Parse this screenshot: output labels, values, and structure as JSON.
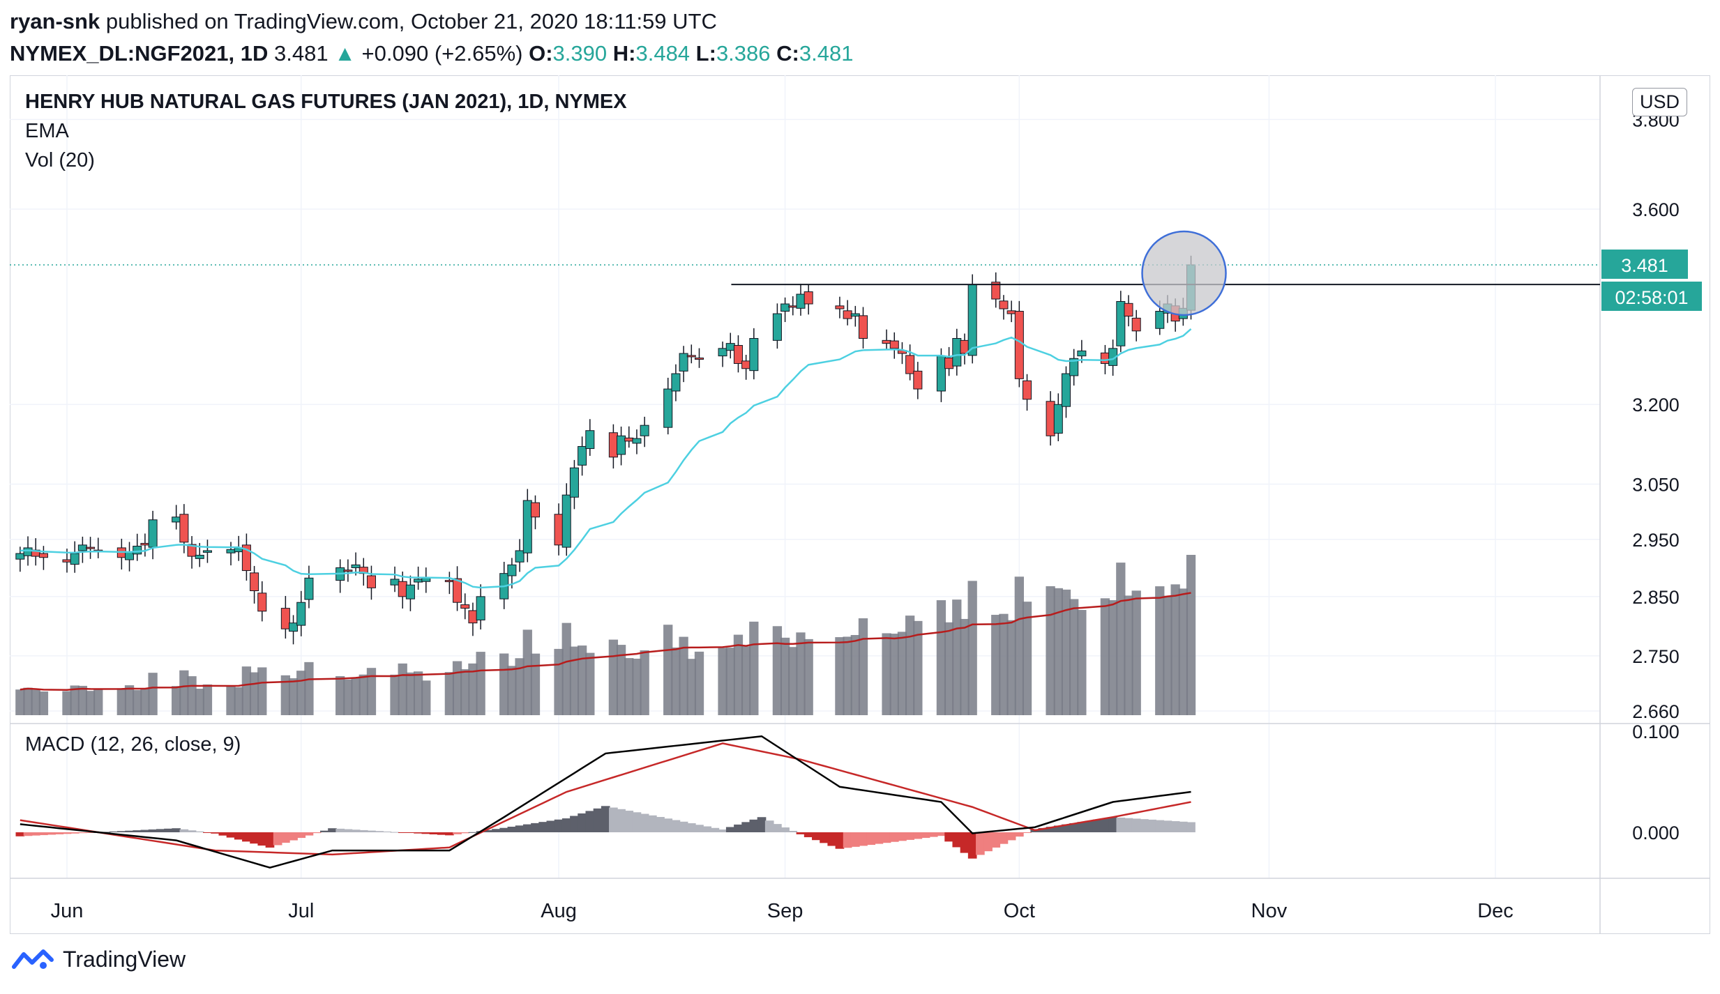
{
  "header": {
    "author": "ryan-snk",
    "published_text": "published on TradingView.com, October 21, 2020 18:11:59 UTC",
    "symbol": "NYMEX_DL:NGF2021, 1D",
    "last": "3.481",
    "change_arrow": "▲",
    "change": "+0.090 (+2.65%)",
    "o_label": "O:",
    "o_value": "3.390",
    "h_label": "H:",
    "h_value": "3.484",
    "l_label": "L:",
    "l_value": "3.386",
    "c_label": "C:",
    "c_value": "3.481"
  },
  "legend": {
    "title": "HENRY HUB NATURAL GAS FUTURES (JAN 2021), 1D, NYMEX",
    "ema": "EMA",
    "vol": "Vol (20)",
    "macd": "MACD (12, 26, close, 9)"
  },
  "currency_button": "USD",
  "price_label": "3.481",
  "countdown_label": "02:58:01",
  "footer": {
    "brand": "TradingView",
    "logo_icon": "tradingview-logo-icon"
  },
  "colors": {
    "up": "#26a69a",
    "down": "#ef5350",
    "ema": "#4dd0e1",
    "volume": "#787b86",
    "volume_ma": "#b71c1c",
    "macd": "#000000",
    "signal": "#c62828",
    "hist_pos_dark": "#5d606b",
    "hist_pos_light": "#b2b5be",
    "hist_neg_dark": "#c62828",
    "hist_neg_light": "#ef7f7f",
    "highlight_fill": "#c8c8cc",
    "highlight_stroke": "#3f6fd8"
  },
  "chart_data": {
    "type": "candlestick",
    "title": "HENRY HUB NATURAL GAS FUTURES (JAN 2021), 1D, NYMEX",
    "currency": "USD",
    "price_axis": {
      "scale": "log",
      "ticks": [
        3.8,
        3.6,
        3.2,
        3.05,
        2.95,
        2.85,
        2.75,
        2.66
      ],
      "tick_labels": [
        "3.800",
        "3.600",
        "3.200",
        "3.050",
        "2.950",
        "2.850",
        "2.750",
        "2.660"
      ]
    },
    "x_axis": {
      "months": [
        {
          "label": "Jun",
          "date": "2020-06-01"
        },
        {
          "label": "Jul",
          "date": "2020-07-01"
        },
        {
          "label": "Aug",
          "date": "2020-08-03"
        },
        {
          "label": "Sep",
          "date": "2020-09-01"
        },
        {
          "label": "Oct",
          "date": "2020-10-01"
        },
        {
          "label": "Nov",
          "date": "2020-11-02"
        },
        {
          "label": "Dec",
          "date": "2020-12-01"
        }
      ],
      "first_date": "2020-05-26",
      "last_date": "2020-10-21"
    },
    "resistance_level": 3.44,
    "last_price": 3.481,
    "highlight_date": "2020-10-21",
    "closes": [
      2.925,
      2.935,
      2.92,
      2.918,
      2.91,
      2.925,
      2.94,
      2.935,
      2.93,
      2.918,
      2.928,
      2.938,
      2.94,
      2.985,
      2.99,
      2.945,
      2.92,
      2.922,
      2.93,
      2.932,
      2.935,
      2.895,
      2.86,
      2.825,
      2.795,
      2.805,
      2.84,
      2.882,
      2.9,
      2.895,
      2.905,
      2.89,
      2.865,
      2.88,
      2.85,
      2.87,
      2.88,
      2.882,
      2.876,
      2.84,
      2.83,
      2.805,
      2.85,
      2.89,
      2.905,
      2.93,
      3.02,
      2.99,
      2.94,
      3.03,
      3.08,
      3.12,
      3.15,
      3.1,
      3.14,
      3.13,
      3.135,
      3.16,
      3.23,
      3.26,
      3.3,
      3.295,
      3.29,
      3.31,
      3.32,
      3.28,
      3.27,
      3.33,
      3.38,
      3.4,
      3.395,
      3.42,
      3.4,
      3.39,
      3.37,
      3.38,
      3.33,
      3.32,
      3.31,
      3.3,
      3.26,
      3.23,
      3.295,
      3.27,
      3.33,
      3.3,
      3.44,
      3.41,
      3.39,
      3.38,
      3.25,
      3.21,
      3.14,
      3.2,
      3.26,
      3.29,
      3.305,
      3.28,
      3.31,
      3.405,
      3.375,
      3.345,
      3.385,
      3.4,
      3.365,
      3.391,
      3.481
    ],
    "ema": {
      "start": 2.93,
      "end": 3.37
    },
    "volume_ma_start_pct": 0.1,
    "volume_ma_end_pct": 0.55,
    "macd_axis": {
      "ticks": [
        0.1,
        0.0
      ],
      "tick_labels": [
        "0.100",
        "0.000"
      ]
    },
    "macd": {
      "macd_points": [
        [
          0,
          0.008
        ],
        [
          20,
          -0.008
        ],
        [
          32,
          -0.035
        ],
        [
          40,
          -0.018
        ],
        [
          55,
          -0.018
        ],
        [
          62,
          0.015
        ],
        [
          75,
          0.078
        ],
        [
          95,
          0.095
        ],
        [
          105,
          0.045
        ],
        [
          118,
          0.03
        ],
        [
          122,
          -0.001
        ],
        [
          130,
          0.005
        ],
        [
          140,
          0.03
        ],
        [
          150,
          0.04
        ]
      ],
      "signal_points": [
        [
          0,
          0.012
        ],
        [
          25,
          -0.018
        ],
        [
          40,
          -0.022
        ],
        [
          55,
          -0.015
        ],
        [
          70,
          0.04
        ],
        [
          90,
          0.088
        ],
        [
          100,
          0.072
        ],
        [
          115,
          0.04
        ],
        [
          122,
          0.025
        ],
        [
          130,
          0.002
        ],
        [
          140,
          0.015
        ],
        [
          150,
          0.03
        ]
      ]
    }
  }
}
